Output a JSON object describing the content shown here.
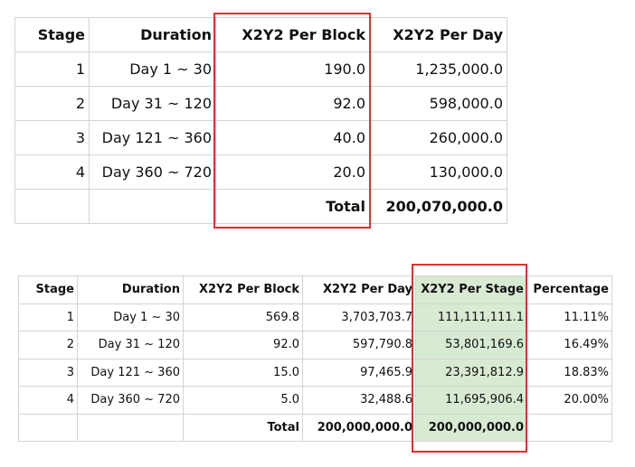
{
  "table1": {
    "headers": [
      "Stage",
      "Duration",
      "X2Y2 Per Block",
      "X2Y2 Per Day"
    ],
    "rows": [
      [
        "1",
        "Day 1 ~ 30",
        "190.0",
        "1,235,000.0"
      ],
      [
        "2",
        "Day 31 ~ 120",
        "92.0",
        "598,000.0"
      ],
      [
        "3",
        "Day 121 ~ 360",
        "40.0",
        "260,000.0"
      ],
      [
        "4",
        "Day 360 ~ 720",
        "20.0",
        "130,000.0"
      ]
    ],
    "total_label": "Total",
    "total_value": "200,070,000.0"
  },
  "table2": {
    "headers": [
      "Stage",
      "Duration",
      "X2Y2 Per Block",
      "X2Y2 Per Day",
      "X2Y2 Per Stage",
      "Percentage"
    ],
    "rows": [
      [
        "1",
        "Day 1 ~ 30",
        "569.8",
        "3,703,703.7",
        "111,111,111.1",
        "11.11%"
      ],
      [
        "2",
        "Day 31 ~ 120",
        "92.0",
        "597,790.8",
        "53,801,169.6",
        "16.49%"
      ],
      [
        "3",
        "Day 121 ~ 360",
        "15.0",
        "97,465.9",
        "23,391,812.9",
        "18.83%"
      ],
      [
        "4",
        "Day 360 ~ 720",
        "5.0",
        "32,488.6",
        "11,695,906.4",
        "20.00%"
      ]
    ],
    "total_label": "Total",
    "total_per_day": "200,000,000.0",
    "total_per_stage": "200,000,000.0"
  },
  "highlight_color": "#d9ead3",
  "box_color": "#e0302c"
}
